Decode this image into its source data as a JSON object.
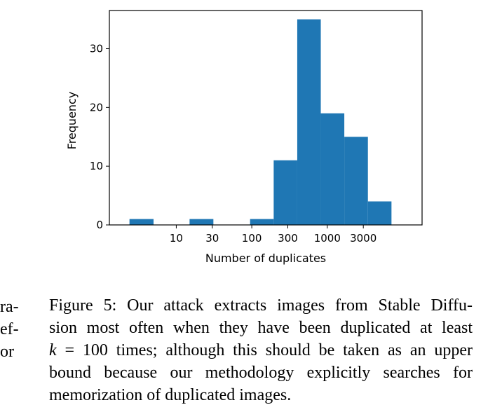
{
  "chart_data": {
    "type": "bar",
    "xlabel": "Number of duplicates",
    "ylabel": "Frequency",
    "x_scale": "log",
    "xlim": [
      1.3,
      18000
    ],
    "ylim": [
      0,
      36.5
    ],
    "x_ticks": [
      {
        "value": 10,
        "label": "10"
      },
      {
        "value": 30,
        "label": "30"
      },
      {
        "value": 100,
        "label": "100"
      },
      {
        "value": 300,
        "label": "300"
      },
      {
        "value": 1000,
        "label": "1000"
      },
      {
        "value": 3000,
        "label": "3000"
      }
    ],
    "y_ticks": [
      {
        "value": 0,
        "label": "0"
      },
      {
        "value": 10,
        "label": "10"
      },
      {
        "value": 20,
        "label": "20"
      },
      {
        "value": 30,
        "label": "30"
      }
    ],
    "bins": [
      {
        "x0": 2.4,
        "x1": 5,
        "value": 1
      },
      {
        "x0": 15,
        "x1": 31,
        "value": 1
      },
      {
        "x0": 95,
        "x1": 195,
        "value": 1
      },
      {
        "x0": 195,
        "x1": 400,
        "value": 11
      },
      {
        "x0": 400,
        "x1": 820,
        "value": 35
      },
      {
        "x0": 820,
        "x1": 1680,
        "value": 19
      },
      {
        "x0": 1680,
        "x1": 3450,
        "value": 15
      },
      {
        "x0": 3450,
        "x1": 7080,
        "value": 4
      }
    ],
    "bar_color": "#1f77b4"
  },
  "left_margin_fragments": [
    "ra-",
    "ef-",
    "or"
  ],
  "caption": {
    "lines": [
      "Figure 5: Our attack extracts images from Stable Diffu-",
      "sion most often when they have been duplicated at least",
      null,
      "bound because our methodology explicitly searches for",
      "memorization of duplicated images."
    ],
    "line3_var": "k",
    "line3_rest": " = 100 times; although this should be taken as an upper"
  }
}
